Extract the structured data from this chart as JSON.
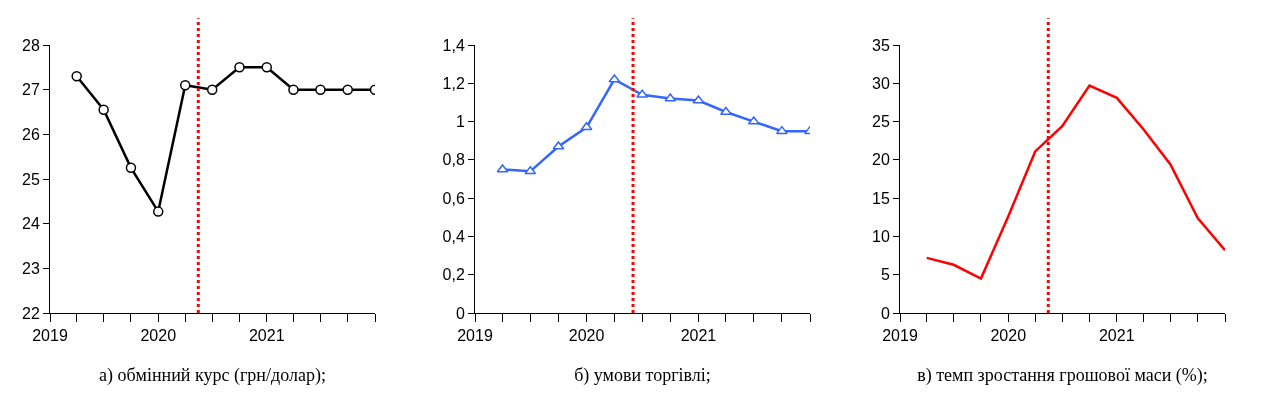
{
  "chart_data": [
    {
      "type": "line",
      "xlabel": "а) обмінний курс (грн/долар);",
      "x": [
        "2019-04",
        "2019-07",
        "2019-10",
        "2020-01",
        "2020-04",
        "2020-07",
        "2020-10",
        "2021-01",
        "2021-04",
        "2021-07",
        "2021-10",
        "2022-01"
      ],
      "series": [
        {
          "color": "#000000",
          "values": [
            27.3,
            26.55,
            25.25,
            24.27,
            27.1,
            27.0,
            27.5,
            27.5,
            27.0,
            27.0,
            27.0,
            27.0
          ]
        }
      ],
      "xlim": [
        "2019-01-01",
        "2022-01-01"
      ],
      "xticks": [
        {
          "value": "2019-01-01",
          "label": "2019"
        },
        {
          "value": "2019-04-01",
          "label": null
        },
        {
          "value": "2019-07-01",
          "label": null
        },
        {
          "value": "2019-10-01",
          "label": null
        },
        {
          "value": "2020-01-01",
          "label": "2020"
        },
        {
          "value": "2020-04-01",
          "label": null
        },
        {
          "value": "2020-07-01",
          "label": null
        },
        {
          "value": "2020-10-01",
          "label": null
        },
        {
          "value": "2021-01-01",
          "label": "2021"
        },
        {
          "value": "2021-04-01",
          "label": null
        },
        {
          "value": "2021-07-01",
          "label": null
        },
        {
          "value": "2021-10-01",
          "label": null
        },
        {
          "value": "2022-01-01",
          "label": null
        }
      ],
      "ylim": [
        22,
        28
      ],
      "yticks": [
        22,
        23,
        24,
        25,
        26,
        27,
        28
      ],
      "grid": false,
      "marker": "circle",
      "line_style": "solid",
      "ref_lines": [
        {
          "axis": "x",
          "value": "2020-05-15",
          "color": "#ff0000",
          "line_style": "dotted"
        }
      ]
    },
    {
      "type": "line",
      "xlabel": "б) умови торгівлі;",
      "x": [
        "2019-04",
        "2019-07",
        "2019-10",
        "2020-01",
        "2020-04",
        "2020-07",
        "2020-10",
        "2021-01",
        "2021-04",
        "2021-07",
        "2021-10",
        "2022-01"
      ],
      "series": [
        {
          "color": "#3366ff",
          "values": [
            0.75,
            0.74,
            0.87,
            0.97,
            1.22,
            1.14,
            1.12,
            1.11,
            1.05,
            1.0,
            0.95,
            0.95
          ]
        }
      ],
      "xlim": [
        "2019-01-01",
        "2022-01-01"
      ],
      "xticks": [
        {
          "value": "2019-01-01",
          "label": "2019"
        },
        {
          "value": "2019-04-01",
          "label": null
        },
        {
          "value": "2019-07-01",
          "label": null
        },
        {
          "value": "2019-10-01",
          "label": null
        },
        {
          "value": "2020-01-01",
          "label": "2020"
        },
        {
          "value": "2020-04-01",
          "label": null
        },
        {
          "value": "2020-07-01",
          "label": null
        },
        {
          "value": "2020-10-01",
          "label": null
        },
        {
          "value": "2021-01-01",
          "label": "2021"
        },
        {
          "value": "2021-04-01",
          "label": null
        },
        {
          "value": "2021-07-01",
          "label": null
        },
        {
          "value": "2021-10-01",
          "label": null
        },
        {
          "value": "2022-01-01",
          "label": null
        }
      ],
      "ylim": [
        0,
        1.4
      ],
      "yticks": [
        0,
        {
          "value": 0.2,
          "label": "0,2"
        },
        {
          "value": 0.4,
          "label": "0,4"
        },
        {
          "value": 0.6,
          "label": "0,6"
        },
        {
          "value": 0.8,
          "label": "0,8"
        },
        1,
        {
          "value": 1.2,
          "label": "1,2"
        },
        {
          "value": 1.4,
          "label": "1,4"
        }
      ],
      "grid": false,
      "marker": "triangle",
      "line_style": "solid",
      "ref_lines": [
        {
          "axis": "x",
          "value": "2020-06-01",
          "color": "#ff0000",
          "line_style": "dotted"
        }
      ]
    },
    {
      "type": "line",
      "xlabel": "в) темп зростання грошової маси (%);",
      "x": [
        "2019-04",
        "2019-07",
        "2019-10",
        "2020-01",
        "2020-04",
        "2020-07",
        "2020-10",
        "2021-01",
        "2021-04",
        "2021-07",
        "2021-10",
        "2022-01"
      ],
      "series": [
        {
          "color": "#ff0000",
          "values": [
            7.2,
            6.3,
            4.5,
            12.6,
            21.1,
            24.4,
            29.7,
            28.1,
            24.0,
            19.4,
            12.4,
            8.2
          ]
        }
      ],
      "xlim": [
        "2019-01-01",
        "2022-01-01"
      ],
      "xticks": [
        {
          "value": "2019-01-01",
          "label": "2019"
        },
        {
          "value": "2019-04-01",
          "label": null
        },
        {
          "value": "2019-07-01",
          "label": null
        },
        {
          "value": "2019-10-01",
          "label": null
        },
        {
          "value": "2020-01-01",
          "label": "2020"
        },
        {
          "value": "2020-04-01",
          "label": null
        },
        {
          "value": "2020-07-01",
          "label": null
        },
        {
          "value": "2020-10-01",
          "label": null
        },
        {
          "value": "2021-01-01",
          "label": "2021"
        },
        {
          "value": "2021-04-01",
          "label": null
        },
        {
          "value": "2021-07-01",
          "label": null
        },
        {
          "value": "2021-10-01",
          "label": null
        },
        {
          "value": "2022-01-01",
          "label": null
        }
      ],
      "ylim": [
        0,
        35
      ],
      "yticks": [
        0,
        5,
        10,
        15,
        20,
        25,
        30,
        35
      ],
      "grid": false,
      "marker": "none",
      "line_style": "solid",
      "ref_lines": [
        {
          "axis": "x",
          "value": "2020-05-15",
          "color": "#ff0000",
          "line_style": "dotted"
        }
      ]
    }
  ]
}
